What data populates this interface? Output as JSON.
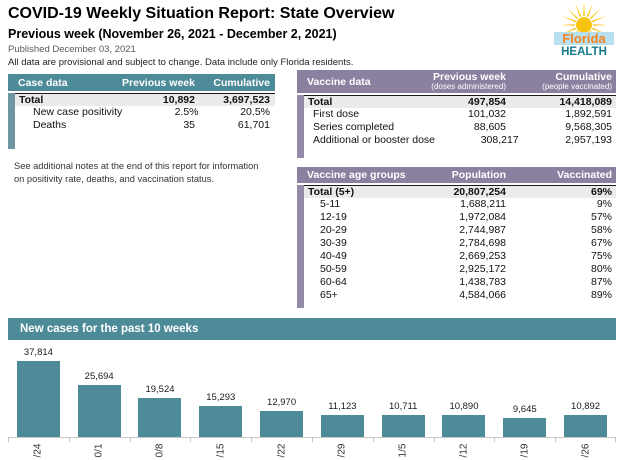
{
  "header": {
    "title": "COVID-19 Weekly Situation Report: State Overview",
    "subtitle": "Previous week (November 26, 2021 - December 2, 2021)",
    "published": "Published December 03, 2021",
    "disclaimer": "All data are provisional and subject to change. Data include only Florida residents.",
    "logo": {
      "line1": "Florida",
      "line2": "HEALTH"
    }
  },
  "case_table": {
    "title": "Case data",
    "col1": "Previous week",
    "col2": "Cumulative",
    "rows": [
      {
        "label": "Total",
        "prev": "10,892",
        "cum": "3,697,523",
        "total": true
      },
      {
        "label": "New case positivity",
        "prev": "2.5%",
        "cum": "20.5%"
      },
      {
        "label": "Deaths",
        "prev": "35",
        "cum": "61,701"
      }
    ]
  },
  "note": "See additional notes at the end of this report for information on positivity rate, deaths, and vaccination status.",
  "vaccine_table": {
    "title": "Vaccine data",
    "col1": "Previous week",
    "col1_sub": "(doses administered)",
    "col2": "Cumulative",
    "col2_sub": "(people vaccinated)",
    "rows": [
      {
        "label": "Total",
        "prev": "497,854",
        "cum": "14,418,089",
        "total": true
      },
      {
        "label": "First dose",
        "prev": "101,032",
        "cum": "1,892,591"
      },
      {
        "label": "Series completed",
        "prev": "88,605",
        "cum": "9,568,305"
      },
      {
        "label": "Additional or booster dose",
        "prev": "308,217",
        "cum": "2,957,193"
      }
    ]
  },
  "age_table": {
    "title": "Vaccine age groups",
    "col1": "Population",
    "col2": "Vaccinated",
    "rows": [
      {
        "label": "Total (5+)",
        "prev": "20,807,254",
        "cum": "69%",
        "total": true
      },
      {
        "label": "5-11",
        "prev": "1,688,211",
        "cum": "9%"
      },
      {
        "label": "12-19",
        "prev": "1,972,084",
        "cum": "57%"
      },
      {
        "label": "20-29",
        "prev": "2,744,987",
        "cum": "58%"
      },
      {
        "label": "30-39",
        "prev": "2,784,698",
        "cum": "67%"
      },
      {
        "label": "40-49",
        "prev": "2,669,253",
        "cum": "75%"
      },
      {
        "label": "50-59",
        "prev": "2,925,172",
        "cum": "80%"
      },
      {
        "label": "60-64",
        "prev": "1,438,783",
        "cum": "87%"
      },
      {
        "label": "65+",
        "prev": "4,584,066",
        "cum": "89%"
      }
    ]
  },
  "chart_data": {
    "type": "bar",
    "title": "New cases for the past 10 weeks",
    "categories": [
      "/24",
      "0/1",
      "0/8",
      "/15",
      "/22",
      "/29",
      "1/5",
      "/12",
      "/19",
      "/26"
    ],
    "values": [
      37814,
      25694,
      19524,
      15293,
      12970,
      11123,
      10711,
      10890,
      9645,
      10892
    ],
    "value_labels": [
      "37,814",
      "25,694",
      "19,524",
      "15,293",
      "12,970",
      "11,123",
      "10,711",
      "10,890",
      "9,645",
      "10,892"
    ],
    "xlabel": "",
    "ylabel": "",
    "ylim": [
      0,
      40000
    ],
    "grid": false,
    "legend": "none",
    "bar_color": "#4e8b98",
    "axis_color": "#c8c8c8",
    "tick_label_rotation_deg": -90,
    "tick_labels_clipped_at_bottom": true
  },
  "colors": {
    "teal_accent": "#4e8b98",
    "purple_accent": "#8b80a0",
    "total_row_bg": "#ebebeb",
    "logo_orange": "#f58220",
    "logo_teal": "#147d8e",
    "logo_yellow": "#f9c411",
    "logo_blue_band": "#b8e0ee"
  }
}
